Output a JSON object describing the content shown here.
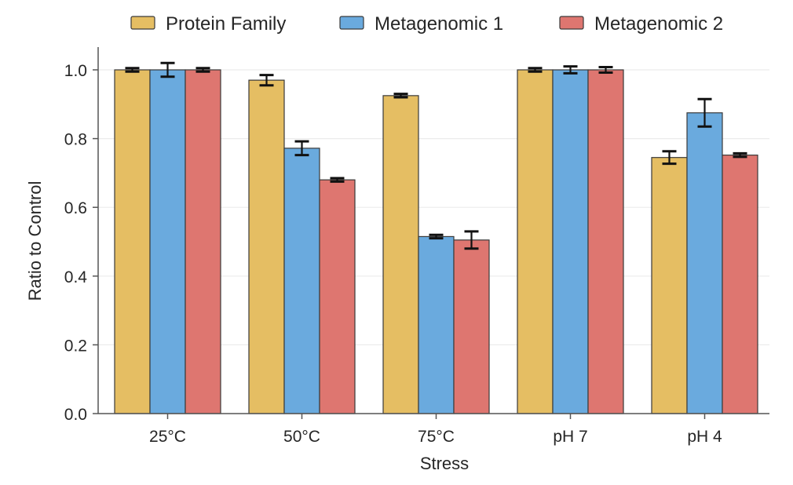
{
  "chart_data": {
    "type": "bar",
    "title": "",
    "xlabel": "Stress",
    "ylabel": "Ratio to Control",
    "ylim": [
      0,
      1.05
    ],
    "yticks": [
      0.0,
      0.2,
      0.4,
      0.6,
      0.8,
      1.0
    ],
    "ytick_labels": [
      "0.0",
      "0.2",
      "0.4",
      "0.6",
      "0.8",
      "1.0"
    ],
    "grid": true,
    "legend_position": "top",
    "categories": [
      "25°C",
      "50°C",
      "75°C",
      "pH 7",
      "pH 4"
    ],
    "series": [
      {
        "name": "Protein Family",
        "color": "#E5BE63",
        "values": [
          1.0,
          0.97,
          0.925,
          1.0,
          0.745
        ],
        "errors": [
          0.005,
          0.015,
          0.005,
          0.005,
          0.018
        ]
      },
      {
        "name": "Metagenomic 1",
        "color": "#6AAADE",
        "values": [
          1.0,
          0.772,
          0.515,
          1.0,
          0.875
        ],
        "errors": [
          0.02,
          0.02,
          0.005,
          0.01,
          0.04
        ]
      },
      {
        "name": "Metagenomic 2",
        "color": "#DE7670",
        "values": [
          1.0,
          0.68,
          0.505,
          1.0,
          0.752
        ],
        "errors": [
          0.005,
          0.005,
          0.025,
          0.008,
          0.005
        ]
      }
    ]
  }
}
